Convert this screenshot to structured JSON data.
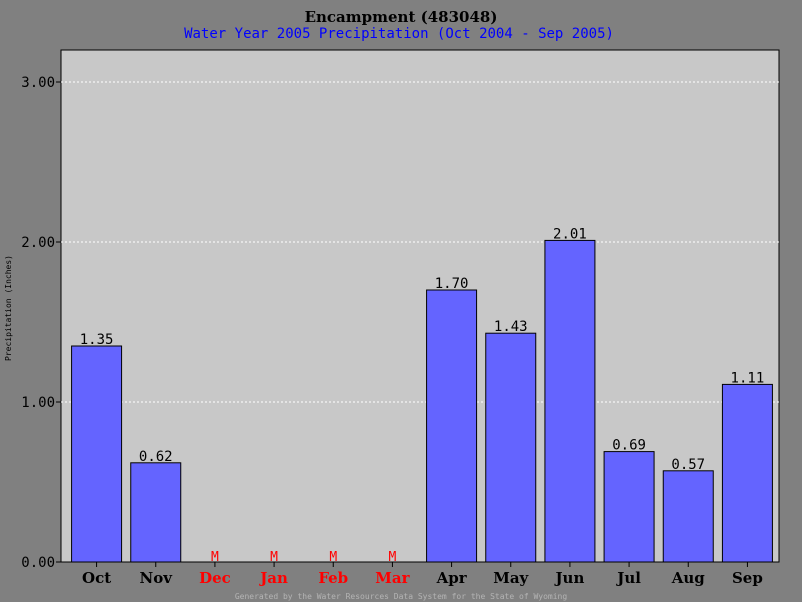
{
  "page": {
    "footer": "Generated by the Water Resources Data System for the State of Wyoming"
  },
  "chart_data": {
    "type": "bar",
    "title": "Encampment (483048)",
    "subtitle": "Water Year 2005 Precipitation (Oct 2004 - Sep 2005)",
    "ylabel": "Precipitation (Inches)",
    "xlabel": "",
    "ylim": [
      0,
      3.0
    ],
    "yticks": [
      0.0,
      1.0,
      2.0,
      3.0
    ],
    "ytick_labels": [
      "0.00",
      "1.00",
      "2.00",
      "3.00"
    ],
    "grid": true,
    "categories": [
      "Oct",
      "Nov",
      "Dec",
      "Jan",
      "Feb",
      "Mar",
      "Apr",
      "May",
      "Jun",
      "Jul",
      "Aug",
      "Sep"
    ],
    "values": [
      1.35,
      0.62,
      null,
      null,
      null,
      null,
      1.7,
      1.43,
      2.01,
      0.69,
      0.57,
      1.11
    ],
    "value_labels": [
      "1.35",
      "0.62",
      "M",
      "M",
      "M",
      "M",
      "1.70",
      "1.43",
      "2.01",
      "0.69",
      "0.57",
      "1.11"
    ],
    "missing_marker": "M",
    "colors": {
      "background": "#808080",
      "plot": "#c8c8c8",
      "bar": "#6464ff",
      "bar_edge": "#000000",
      "title": "#000000",
      "subtitle": "#0000ff",
      "missing": "#ff0000",
      "grid": "#ffffff",
      "footer": "#b4b4b4"
    }
  }
}
